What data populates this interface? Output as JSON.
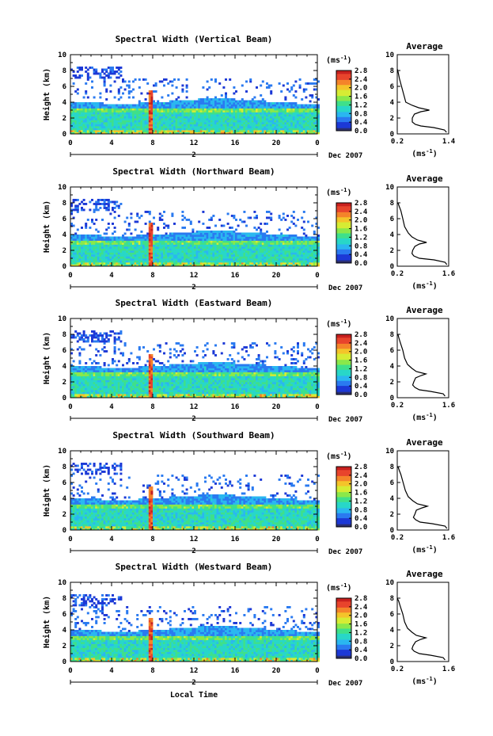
{
  "colors": {
    "background": "#ffffff",
    "scale": [
      "#2b2f73",
      "#1c39d6",
      "#2a7af0",
      "#2ab7f0",
      "#28d7c8",
      "#3fe08a",
      "#8be84a",
      "#d6ec34",
      "#f4c42a",
      "#f4842a",
      "#e8442c",
      "#c8201e"
    ]
  },
  "x_axis_label": "Local Time",
  "date_label": "Dec 2007",
  "day_label": "2",
  "units_label": "(ms",
  "units_exp": "-1",
  "units_close": ")",
  "average_title": "Average",
  "average_units": "(ms",
  "average_units_exp": "-1",
  "average_units_close": ")",
  "y_label": "Height (km)",
  "panels": [
    {
      "title": "Spectral Width (Vertical Beam)"
    },
    {
      "title": "Spectral Width (Northward Beam)"
    },
    {
      "title": "Spectral Width (Eastward Beam)"
    },
    {
      "title": "Spectral Width (Southward Beam)"
    },
    {
      "title": "Spectral Width (Westward Beam)"
    }
  ],
  "chart_data": [
    {
      "type": "heatmap",
      "title": "Spectral Width (Vertical Beam)",
      "xlabel": "",
      "ylabel": "Height (km)",
      "x_ticks": [
        "0",
        "4",
        "8",
        "12",
        "16",
        "20",
        "0"
      ],
      "y_ticks": [
        "0",
        "2",
        "4",
        "6",
        "8",
        "10"
      ],
      "xlim": [
        0,
        24
      ],
      "ylim": [
        0,
        10
      ],
      "colorbar_ticks": [
        "0.0",
        "0.4",
        "0.8",
        "1.2",
        "1.6",
        "2.0",
        "2.4",
        "2.8"
      ],
      "average_profile": {
        "xlim": [
          0.2,
          1.4
        ],
        "x_ticks": [
          "0.2",
          "1.4"
        ],
        "y_ticks": [
          "0",
          "2",
          "4",
          "6",
          "8",
          "10"
        ],
        "height": [
          0.2,
          0.5,
          0.8,
          1.0,
          1.2,
          1.5,
          2.0,
          2.5,
          2.8,
          3.0,
          3.3,
          3.6,
          4.0,
          5.0,
          6.0,
          7.0,
          7.8,
          8.2
        ],
        "width": [
          1.35,
          1.3,
          1.05,
          0.75,
          0.62,
          0.55,
          0.55,
          0.6,
          0.75,
          0.95,
          0.7,
          0.55,
          0.4,
          0.35,
          0.3,
          0.25,
          0.22,
          0.2
        ]
      }
    },
    {
      "type": "heatmap",
      "title": "Spectral Width (Northward Beam)",
      "xlabel": "",
      "ylabel": "Height (km)",
      "x_ticks": [
        "0",
        "4",
        "8",
        "12",
        "16",
        "20",
        "0"
      ],
      "y_ticks": [
        "0",
        "2",
        "4",
        "6",
        "8",
        "10"
      ],
      "xlim": [
        0,
        24
      ],
      "ylim": [
        0,
        10
      ],
      "colorbar_ticks": [
        "0.0",
        "0.4",
        "0.8",
        "1.2",
        "1.6",
        "2.0",
        "2.4",
        "2.8"
      ],
      "average_profile": {
        "xlim": [
          0.2,
          1.6
        ],
        "x_ticks": [
          "0.2",
          "1.6"
        ],
        "y_ticks": [
          "0",
          "2",
          "4",
          "6",
          "8",
          "10"
        ],
        "height": [
          0.2,
          0.5,
          0.8,
          1.0,
          1.3,
          1.6,
          2.0,
          2.5,
          2.8,
          3.0,
          3.3,
          3.7,
          4.2,
          5.0,
          6.0,
          7.0,
          7.6,
          8.0
        ],
        "width": [
          1.55,
          1.5,
          1.2,
          0.8,
          0.65,
          0.6,
          0.62,
          0.68,
          0.8,
          1.0,
          0.75,
          0.6,
          0.5,
          0.4,
          0.35,
          0.3,
          0.25,
          0.22
        ]
      }
    },
    {
      "type": "heatmap",
      "title": "Spectral Width (Eastward Beam)",
      "xlabel": "",
      "ylabel": "Height (km)",
      "x_ticks": [
        "0",
        "4",
        "8",
        "12",
        "16",
        "20",
        "0"
      ],
      "y_ticks": [
        "0",
        "2",
        "4",
        "6",
        "8",
        "10"
      ],
      "xlim": [
        0,
        24
      ],
      "ylim": [
        0,
        10
      ],
      "colorbar_ticks": [
        "0.0",
        "0.4",
        "0.8",
        "1.2",
        "1.6",
        "2.0",
        "2.4",
        "2.8"
      ],
      "average_profile": {
        "xlim": [
          0.2,
          1.6
        ],
        "x_ticks": [
          "0.2",
          "1.6"
        ],
        "y_ticks": [
          "0",
          "2",
          "4",
          "6",
          "8",
          "10"
        ],
        "height": [
          0.2,
          0.5,
          0.8,
          1.0,
          1.3,
          1.6,
          2.0,
          2.5,
          2.8,
          3.0,
          3.3,
          3.7,
          4.2,
          5.0,
          6.0,
          7.0,
          7.6,
          8.0
        ],
        "width": [
          1.5,
          1.45,
          1.1,
          0.8,
          0.68,
          0.62,
          0.65,
          0.7,
          0.85,
          0.98,
          0.72,
          0.6,
          0.48,
          0.4,
          0.35,
          0.28,
          0.24,
          0.22
        ]
      }
    },
    {
      "type": "heatmap",
      "title": "Spectral Width (Southward Beam)",
      "xlabel": "",
      "ylabel": "Height (km)",
      "x_ticks": [
        "0",
        "4",
        "8",
        "12",
        "16",
        "20",
        "0"
      ],
      "y_ticks": [
        "0",
        "2",
        "4",
        "6",
        "8",
        "10"
      ],
      "xlim": [
        0,
        24
      ],
      "ylim": [
        0,
        10
      ],
      "colorbar_ticks": [
        "0.0",
        "0.4",
        "0.8",
        "1.2",
        "1.6",
        "2.0",
        "2.4",
        "2.8"
      ],
      "average_profile": {
        "xlim": [
          0.2,
          1.6
        ],
        "x_ticks": [
          "0.2",
          "1.6"
        ],
        "y_ticks": [
          "0",
          "2",
          "4",
          "6",
          "8",
          "10"
        ],
        "height": [
          0.2,
          0.5,
          0.8,
          1.0,
          1.3,
          1.6,
          2.0,
          2.5,
          2.8,
          3.0,
          3.3,
          3.7,
          4.2,
          5.0,
          6.0,
          7.0,
          7.6,
          8.0
        ],
        "width": [
          1.55,
          1.5,
          1.15,
          0.82,
          0.7,
          0.64,
          0.68,
          0.72,
          0.88,
          1.02,
          0.75,
          0.62,
          0.5,
          0.42,
          0.36,
          0.3,
          0.25,
          0.22
        ]
      }
    },
    {
      "type": "heatmap",
      "title": "Spectral Width (Westward Beam)",
      "xlabel": "Local Time",
      "ylabel": "Height (km)",
      "x_ticks": [
        "0",
        "4",
        "8",
        "12",
        "16",
        "20",
        "0"
      ],
      "y_ticks": [
        "0",
        "2",
        "4",
        "6",
        "8",
        "10"
      ],
      "xlim": [
        0,
        24
      ],
      "ylim": [
        0,
        10
      ],
      "colorbar_ticks": [
        "0.0",
        "0.4",
        "0.8",
        "1.2",
        "1.6",
        "2.0",
        "2.4",
        "2.8"
      ],
      "average_profile": {
        "xlim": [
          0.2,
          1.6
        ],
        "x_ticks": [
          "0.2",
          "1.6"
        ],
        "y_ticks": [
          "0",
          "2",
          "4",
          "6",
          "8",
          "10"
        ],
        "height": [
          0.2,
          0.5,
          0.8,
          1.0,
          1.3,
          1.6,
          2.0,
          2.5,
          2.8,
          3.0,
          3.3,
          3.7,
          4.2,
          5.0,
          6.0,
          7.0,
          7.6,
          8.0
        ],
        "width": [
          1.5,
          1.45,
          1.1,
          0.8,
          0.66,
          0.6,
          0.63,
          0.7,
          0.84,
          0.98,
          0.72,
          0.6,
          0.48,
          0.4,
          0.35,
          0.28,
          0.24,
          0.2
        ]
      }
    }
  ]
}
